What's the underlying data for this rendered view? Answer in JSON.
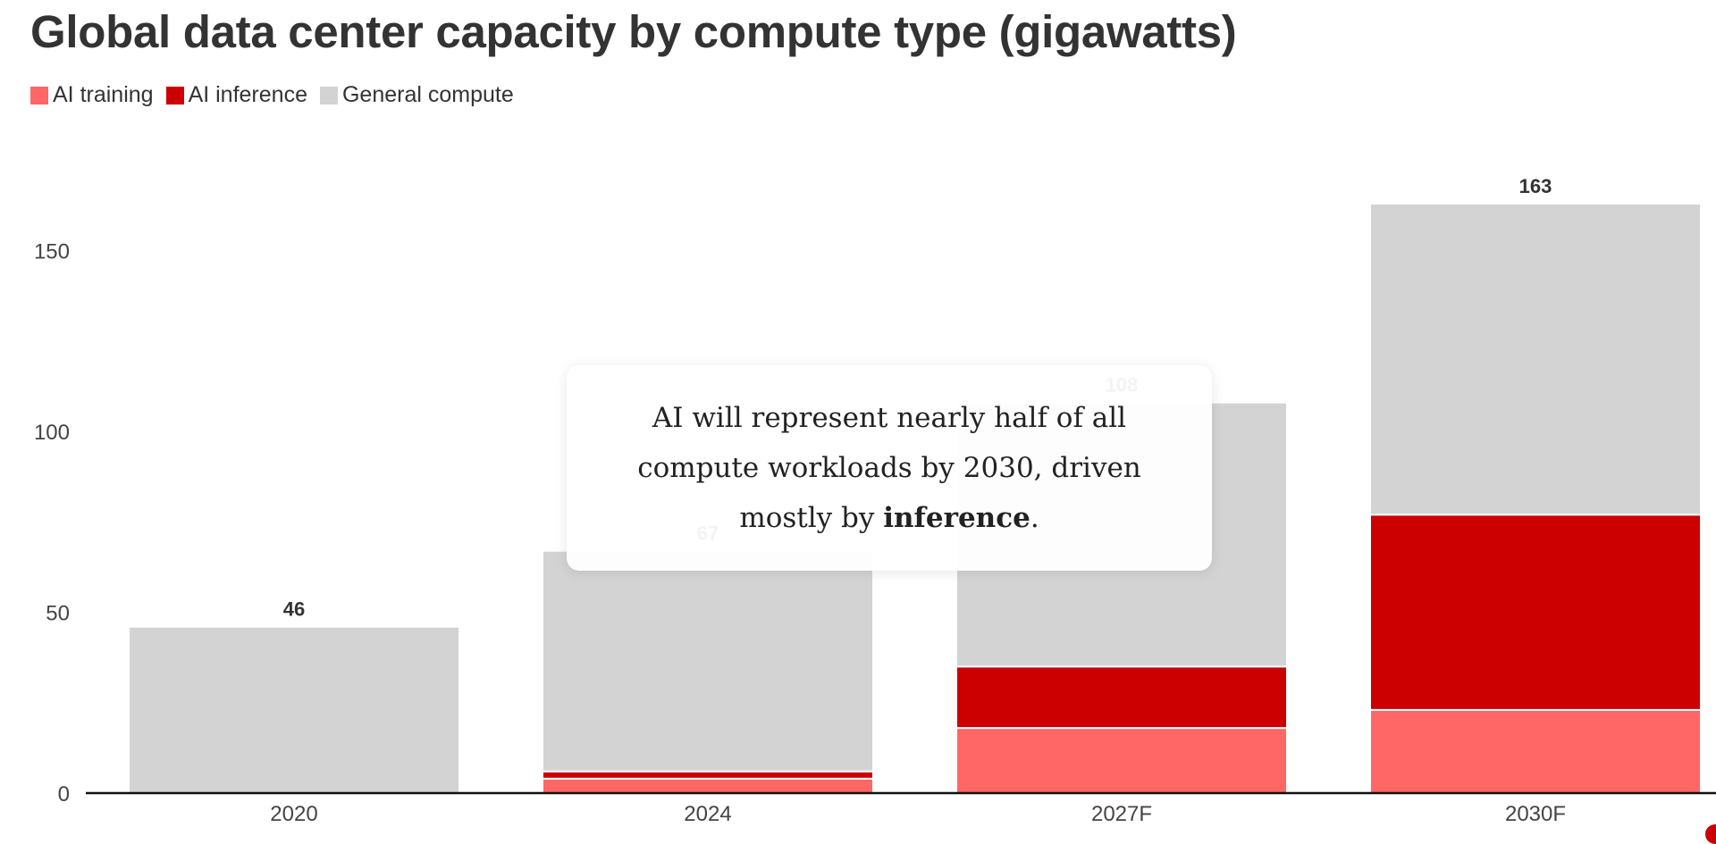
{
  "chart_data": {
    "type": "bar",
    "stacked": true,
    "title": "Global data center capacity by compute type (gigawatts)",
    "categories": [
      "2020",
      "2024",
      "2027F",
      "2030F"
    ],
    "series": [
      {
        "name": "AI training",
        "color": "#ff6666",
        "values": [
          0,
          4,
          18,
          23
        ]
      },
      {
        "name": "AI inference",
        "color": "#cc0000",
        "values": [
          0,
          2,
          17,
          54
        ]
      },
      {
        "name": "General compute",
        "color": "#d3d3d3",
        "values": [
          46,
          61,
          73,
          86
        ]
      }
    ],
    "totals": [
      "46",
      "67",
      "108",
      "163"
    ],
    "yticks": [
      "0",
      "50",
      "100",
      "150"
    ],
    "ylim": [
      0,
      163
    ],
    "xlabel": "",
    "ylabel": "",
    "grid": false,
    "legend": "top-left",
    "annotation": {
      "before": "AI will represent nearly half of all compute workloads by 2030, driven mostly by ",
      "bold": "inference",
      "after": "."
    }
  }
}
